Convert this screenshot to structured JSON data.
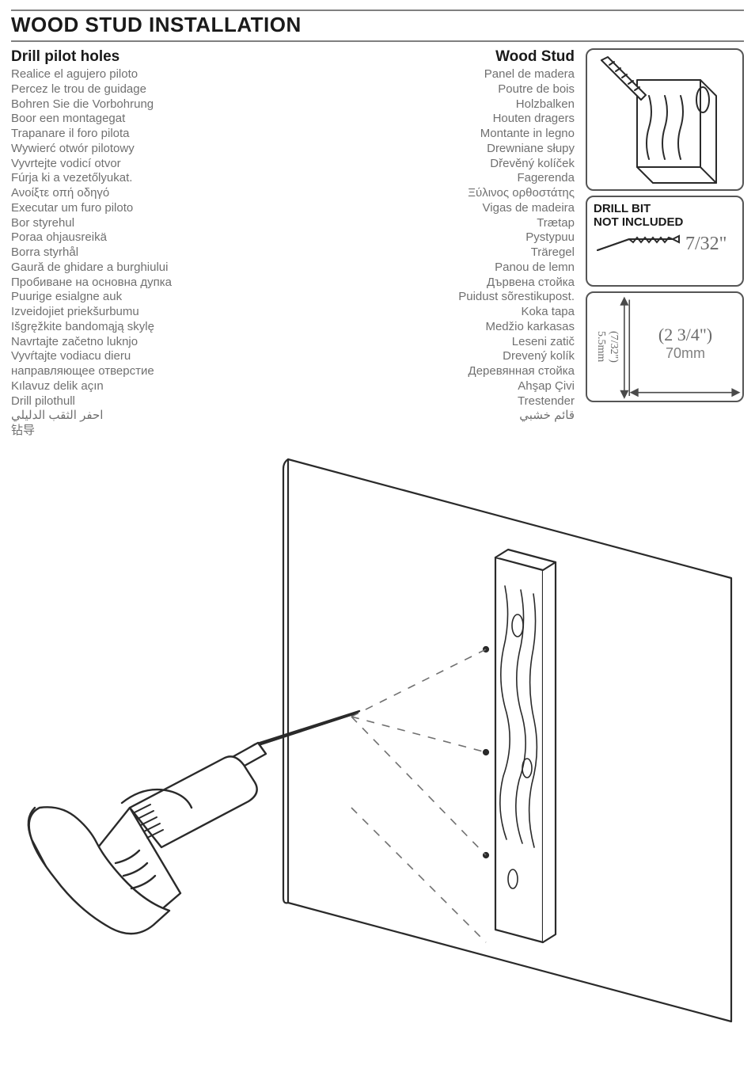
{
  "title": "WOOD STUD INSTALLATION",
  "pilot": {
    "heading": "Drill pilot holes",
    "lines": [
      "Realice el agujero piloto",
      "Percez le trou de guidage",
      "Bohren Sie die Vorbohrung",
      "Boor een montagegat",
      "Trapanare il foro pilota",
      "Wywierć otwór pilotowy",
      "Vyvrtejte vodicí otvor",
      "Fúrja ki a vezetőlyukat.",
      "Ανοίξτε οπή οδηγό",
      "Executar um furo piloto",
      "Bor styrehul",
      "Poraa ohjausreikä",
      "Borra styrhål",
      "Gaură de ghidare a burghiului",
      "Пробиване на основна дупка",
      "Puurige esialgne auk",
      "Izveidojiet priekšurbumu",
      "Išgręžkite bandomąją skylę",
      "Navrtajte začetno luknjo",
      "Vyvŕtajte vodiacu dieru",
      "направляющее отверстие",
      "Kılavuz delik açın",
      "Drill pilothull",
      "احفر الثقب الدليلي",
      "钻导"
    ]
  },
  "stud": {
    "heading": "Wood Stud",
    "lines": [
      "Panel de madera",
      "Poutre de bois",
      "Holzbalken",
      "Houten dragers",
      "Montante in legno",
      "Drewniane słupy",
      "Dřevěný kolíček",
      "Fagerenda",
      "Ξύλινος ορθοστάτης",
      "Vigas de madeira",
      "Trætap",
      "Pystypuu",
      "Träregel",
      "Panou de lemn",
      "Дървена стойка",
      "Puidust sõrestikupost.",
      "Koka tapa",
      "Medžio karkasas",
      "Leseni zatič",
      "Drevený kolík",
      "Деревянная стойка",
      "Ahşap Çivi",
      "Trestender",
      "قائم خشبي"
    ]
  },
  "panels": {
    "drill_bit_caption": "DRILL BIT\nNOT INCLUDED",
    "drill_bit_size": "7/32\"",
    "dim_vert": "(7/32\")\n5.5mm",
    "dim_h1": "(2 3/4\")",
    "dim_h2": "70mm"
  },
  "styling": {
    "page_bg": "#ffffff",
    "text_primary": "#1a1a1a",
    "text_muted": "#707070",
    "rule_color": "#808080",
    "box_border": "#555555",
    "dim_text": "#6b6b6b",
    "arrow_color": "#4a4a4a",
    "line_art": "#2a2a2a",
    "title_fontsize": 26,
    "h2_fontsize": 19,
    "body_fontsize": 15
  }
}
